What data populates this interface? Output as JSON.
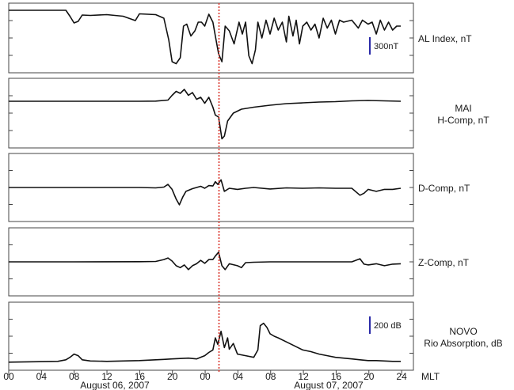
{
  "chart_data": {
    "type": "line",
    "xunit": "MLT",
    "x_ticks": [
      "00",
      "04",
      "08",
      "12",
      "16",
      "20",
      "00",
      "04",
      "08",
      "12",
      "16",
      "20",
      "24"
    ],
    "x_range_hours": [
      0,
      48
    ],
    "date_labels": [
      "August 06, 2007",
      "August 07, 2007"
    ],
    "marker_x_hours": 24,
    "marker_color": "#d9342b",
    "line_color": "#111111",
    "scale_bar_color": "#2a2aa8",
    "panels": [
      {
        "labels": [
          "AL Index, nT"
        ],
        "scale_bar": "300nT",
        "y_range": [
          -1500,
          100
        ],
        "series": [
          [
            0,
            0
          ],
          [
            7,
            0
          ],
          [
            7.5,
            -150
          ],
          [
            8,
            -320
          ],
          [
            8.5,
            -280
          ],
          [
            9,
            -120
          ],
          [
            10,
            -130
          ],
          [
            12,
            -110
          ],
          [
            14,
            -150
          ],
          [
            15.5,
            -260
          ],
          [
            16,
            -90
          ],
          [
            18,
            -110
          ],
          [
            19,
            -200
          ],
          [
            19.6,
            -750
          ],
          [
            20,
            -1300
          ],
          [
            20.5,
            -1350
          ],
          [
            21,
            -1200
          ],
          [
            21.4,
            -400
          ],
          [
            21.8,
            -350
          ],
          [
            22.3,
            -650
          ],
          [
            22.8,
            -520
          ],
          [
            23.2,
            -300
          ],
          [
            23.6,
            -300
          ],
          [
            24,
            -400
          ],
          [
            24.5,
            -100
          ],
          [
            25,
            -300
          ],
          [
            25.3,
            -650
          ],
          [
            25.7,
            -1100
          ],
          [
            26.1,
            -1300
          ],
          [
            26.5,
            -400
          ],
          [
            27,
            -520
          ],
          [
            27.6,
            -850
          ],
          [
            28.2,
            -300
          ],
          [
            28.6,
            -600
          ],
          [
            29,
            -300
          ],
          [
            29.4,
            -1150
          ],
          [
            29.8,
            -1350
          ],
          [
            30.2,
            -1000
          ],
          [
            30.5,
            -300
          ],
          [
            31,
            -700
          ],
          [
            31.5,
            -250
          ],
          [
            32,
            -600
          ],
          [
            32.5,
            -200
          ],
          [
            33,
            -500
          ],
          [
            33.5,
            -300
          ],
          [
            34,
            -800
          ],
          [
            34.3,
            -150
          ],
          [
            34.8,
            -650
          ],
          [
            35.2,
            -250
          ],
          [
            35.6,
            -850
          ],
          [
            36,
            -400
          ],
          [
            36.5,
            -300
          ],
          [
            37,
            -500
          ],
          [
            37.5,
            -350
          ],
          [
            38,
            -700
          ],
          [
            38.5,
            -200
          ],
          [
            39,
            -450
          ],
          [
            39.5,
            -250
          ],
          [
            40,
            -600
          ],
          [
            40.5,
            -250
          ],
          [
            41,
            -300
          ],
          [
            42,
            -250
          ],
          [
            42.8,
            -450
          ],
          [
            43.3,
            -250
          ],
          [
            44,
            -350
          ],
          [
            44.5,
            -300
          ],
          [
            45,
            -600
          ],
          [
            45.5,
            -250
          ],
          [
            46,
            -500
          ],
          [
            46.5,
            -300
          ],
          [
            47,
            -500
          ],
          [
            47.5,
            -400
          ],
          [
            48,
            -400
          ]
        ]
      },
      {
        "labels": [
          "MAI",
          "H-Comp, nT"
        ],
        "scale_bar": "",
        "y_range": [
          -1100,
          500
        ],
        "series": [
          [
            0,
            0
          ],
          [
            8,
            0
          ],
          [
            16,
            0
          ],
          [
            18,
            5
          ],
          [
            19.5,
            30
          ],
          [
            20,
            150
          ],
          [
            20.5,
            250
          ],
          [
            21,
            200
          ],
          [
            21.5,
            300
          ],
          [
            22,
            150
          ],
          [
            22.5,
            220
          ],
          [
            23,
            50
          ],
          [
            23.5,
            100
          ],
          [
            24,
            -50
          ],
          [
            24.5,
            100
          ],
          [
            25,
            -150
          ],
          [
            25.3,
            -350
          ],
          [
            25.7,
            -400
          ],
          [
            26.1,
            -950
          ],
          [
            26.4,
            -880
          ],
          [
            26.8,
            -500
          ],
          [
            27.5,
            -300
          ],
          [
            28.5,
            -200
          ],
          [
            30,
            -150
          ],
          [
            32,
            -100
          ],
          [
            34,
            -60
          ],
          [
            36,
            -40
          ],
          [
            38,
            -20
          ],
          [
            40,
            -10
          ],
          [
            42,
            10
          ],
          [
            44,
            20
          ],
          [
            46,
            10
          ],
          [
            48,
            0
          ]
        ]
      },
      {
        "labels": [
          "D-Comp, nT"
        ],
        "scale_bar": "",
        "y_range": [
          -800,
          800
        ],
        "series": [
          [
            0,
            0
          ],
          [
            8,
            0
          ],
          [
            16,
            0
          ],
          [
            18,
            -10
          ],
          [
            19,
            10
          ],
          [
            19.5,
            80
          ],
          [
            20,
            -50
          ],
          [
            20.5,
            -300
          ],
          [
            20.9,
            -450
          ],
          [
            21.3,
            -250
          ],
          [
            21.7,
            -100
          ],
          [
            22.5,
            -30
          ],
          [
            23.5,
            30
          ],
          [
            24,
            -20
          ],
          [
            24.5,
            50
          ],
          [
            25,
            40
          ],
          [
            25.3,
            150
          ],
          [
            25.6,
            80
          ],
          [
            26,
            200
          ],
          [
            26.4,
            -100
          ],
          [
            27,
            -20
          ],
          [
            28,
            -50
          ],
          [
            29,
            -20
          ],
          [
            30,
            0
          ],
          [
            32,
            -40
          ],
          [
            34,
            -10
          ],
          [
            36,
            -20
          ],
          [
            38,
            -10
          ],
          [
            40,
            -20
          ],
          [
            42,
            -20
          ],
          [
            43,
            -200
          ],
          [
            43.5,
            -150
          ],
          [
            44,
            -50
          ],
          [
            45,
            -100
          ],
          [
            46,
            -50
          ],
          [
            47,
            -50
          ],
          [
            48,
            -20
          ]
        ]
      },
      {
        "labels": [
          "Z-Comp, nT"
        ],
        "scale_bar": "",
        "y_range": [
          -800,
          800
        ],
        "series": [
          [
            0,
            0
          ],
          [
            8,
            0
          ],
          [
            16,
            5
          ],
          [
            18,
            10
          ],
          [
            19,
            60
          ],
          [
            19.5,
            100
          ],
          [
            20,
            20
          ],
          [
            20.5,
            -100
          ],
          [
            21,
            -150
          ],
          [
            21.5,
            -80
          ],
          [
            22,
            -200
          ],
          [
            22.5,
            -100
          ],
          [
            23,
            -50
          ],
          [
            23.5,
            40
          ],
          [
            24,
            -40
          ],
          [
            24.5,
            60
          ],
          [
            25,
            60
          ],
          [
            25.3,
            150
          ],
          [
            25.7,
            250
          ],
          [
            26.1,
            -100
          ],
          [
            26.5,
            -200
          ],
          [
            27,
            -50
          ],
          [
            28,
            -100
          ],
          [
            28.5,
            -150
          ],
          [
            29,
            -20
          ],
          [
            30,
            -10
          ],
          [
            32,
            0
          ],
          [
            34,
            0
          ],
          [
            36,
            0
          ],
          [
            38,
            0
          ],
          [
            40,
            0
          ],
          [
            42,
            0
          ],
          [
            43,
            80
          ],
          [
            43.5,
            -60
          ],
          [
            44,
            -80
          ],
          [
            45,
            -50
          ],
          [
            46,
            -100
          ],
          [
            47,
            -60
          ],
          [
            48,
            -50
          ]
        ]
      },
      {
        "labels": [
          "NOVO",
          "Rio Absorption, dB"
        ],
        "scale_bar": "200 dB",
        "y_range": [
          -60,
          700
        ],
        "series": [
          [
            0,
            0
          ],
          [
            6,
            10
          ],
          [
            7,
            30
          ],
          [
            7.5,
            60
          ],
          [
            8,
            100
          ],
          [
            8.5,
            80
          ],
          [
            9,
            30
          ],
          [
            10,
            15
          ],
          [
            12,
            10
          ],
          [
            14,
            15
          ],
          [
            16,
            20
          ],
          [
            18,
            30
          ],
          [
            19,
            35
          ],
          [
            20,
            40
          ],
          [
            22,
            50
          ],
          [
            23,
            40
          ],
          [
            24,
            80
          ],
          [
            24.5,
            120
          ],
          [
            25,
            150
          ],
          [
            25.3,
            300
          ],
          [
            25.6,
            220
          ],
          [
            26,
            380
          ],
          [
            26.4,
            180
          ],
          [
            26.8,
            300
          ],
          [
            27,
            160
          ],
          [
            27.5,
            230
          ],
          [
            28,
            100
          ],
          [
            29,
            80
          ],
          [
            30,
            60
          ],
          [
            30.5,
            150
          ],
          [
            30.8,
            450
          ],
          [
            31.2,
            480
          ],
          [
            31.6,
            430
          ],
          [
            32,
            350
          ],
          [
            32.5,
            320
          ],
          [
            33,
            300
          ],
          [
            34,
            250
          ],
          [
            35,
            200
          ],
          [
            36,
            150
          ],
          [
            37,
            130
          ],
          [
            38,
            100
          ],
          [
            39,
            80
          ],
          [
            40,
            60
          ],
          [
            41,
            50
          ],
          [
            42,
            40
          ],
          [
            43,
            30
          ],
          [
            44,
            20
          ],
          [
            45,
            20
          ],
          [
            46,
            15
          ],
          [
            47,
            10
          ],
          [
            48,
            10
          ]
        ]
      }
    ]
  }
}
